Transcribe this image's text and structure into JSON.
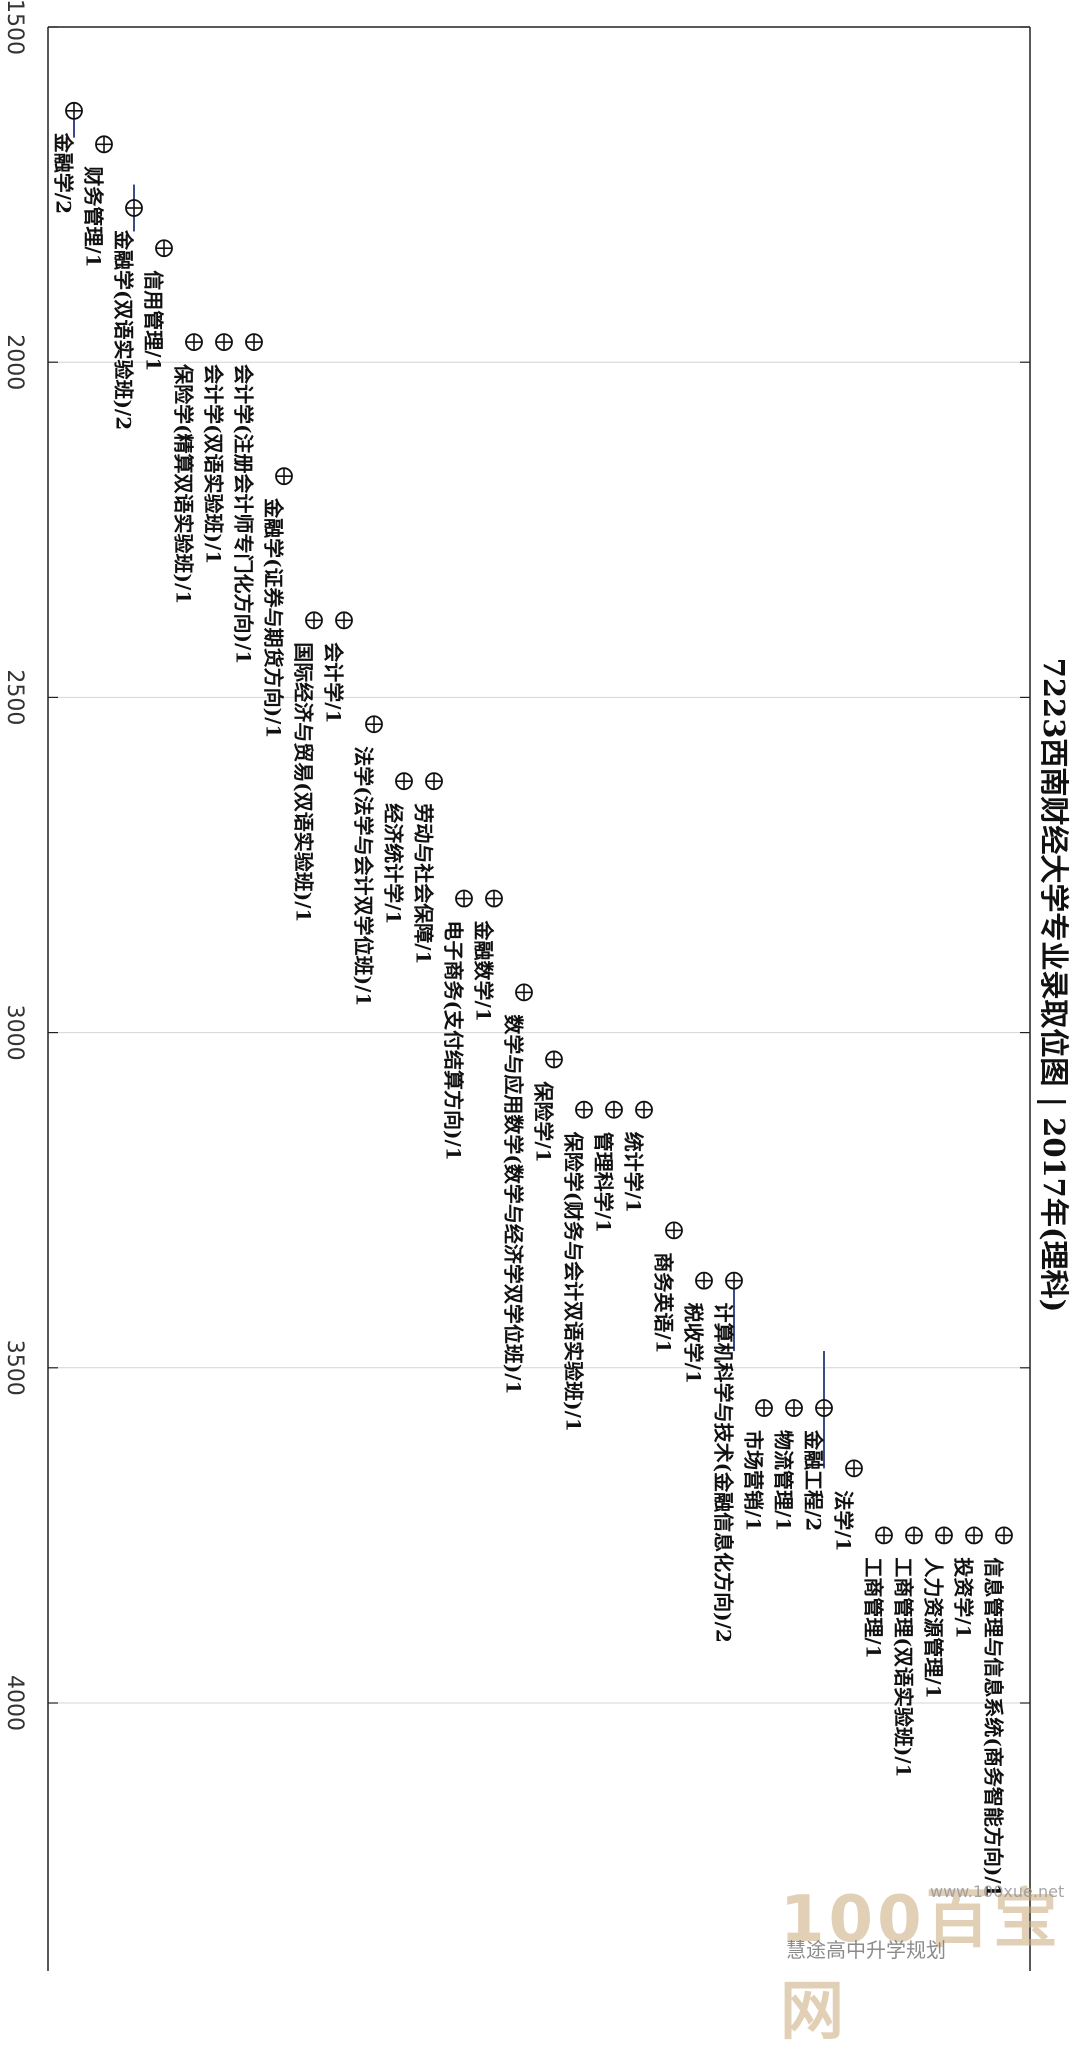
{
  "chart_data": {
    "type": "scatter",
    "title": "7223西南财经大学专业录取位图 | 2017年(理科)",
    "xlim": [
      1500,
      4300
    ],
    "xticks": [
      1500,
      2000,
      2500,
      3000,
      3500,
      4000
    ],
    "grid": true,
    "points": [
      {
        "label": "金融学/2",
        "x": 1625,
        "range": [
          1615,
          1665
        ]
      },
      {
        "label": "财务管理/1",
        "x": 1675
      },
      {
        "label": "金融学(双语实验班)/2",
        "x": 1770,
        "range": [
          1735,
          1805
        ]
      },
      {
        "label": "信用管理/1",
        "x": 1830
      },
      {
        "label": "保险学(精算双语实验班)/1",
        "x": 1970
      },
      {
        "label": "会计学(双语实验班)/1",
        "x": 1970
      },
      {
        "label": "会计学(注册会计师专门化方向)/1",
        "x": 1970
      },
      {
        "label": "金融学(证券与期货方向)/1",
        "x": 2170
      },
      {
        "label": "国际经济与贸易(双语实验班)/1",
        "x": 2385
      },
      {
        "label": "会计学/1",
        "x": 2385
      },
      {
        "label": "法学(法学与会计双学位班)/1",
        "x": 2540
      },
      {
        "label": "经济统计学/1",
        "x": 2625
      },
      {
        "label": "劳动与社会保障/1",
        "x": 2625
      },
      {
        "label": "电子商务(支付结算方向)/1",
        "x": 2800
      },
      {
        "label": "金融数学/1",
        "x": 2800
      },
      {
        "label": "数学与应用数学(数学与经济学双学位班)/1",
        "x": 2940
      },
      {
        "label": "保险学/1",
        "x": 3040
      },
      {
        "label": "保险学(财务与会计双语实验班)/1",
        "x": 3115
      },
      {
        "label": "管理科学/1",
        "x": 3115
      },
      {
        "label": "统计学/1",
        "x": 3115
      },
      {
        "label": "商务英语/1",
        "x": 3295
      },
      {
        "label": "税收学/1",
        "x": 3370
      },
      {
        "label": "计算机科学与技术(金融信息化方向)/2",
        "x": 3370,
        "range": [
          3370,
          3475
        ]
      },
      {
        "label": "市场营销/1",
        "x": 3560
      },
      {
        "label": "物流管理/1",
        "x": 3560
      },
      {
        "label": "金融工程/2",
        "x": 3560,
        "range": [
          3475,
          3650
        ]
      },
      {
        "label": "法学/1",
        "x": 3650
      },
      {
        "label": "工商管理/1",
        "x": 3750
      },
      {
        "label": "工商管理(双语实验班)/1",
        "x": 3750
      },
      {
        "label": "人力资源管理/1",
        "x": 3750
      },
      {
        "label": "投资学/1",
        "x": 3750
      },
      {
        "label": "信息管理与信息系统(商务智能方向)/1",
        "x": 3750
      }
    ]
  },
  "watermark": {
    "logo": "100百宝网",
    "account": "慧途高中升学规划",
    "url": "www.100xue.net"
  }
}
